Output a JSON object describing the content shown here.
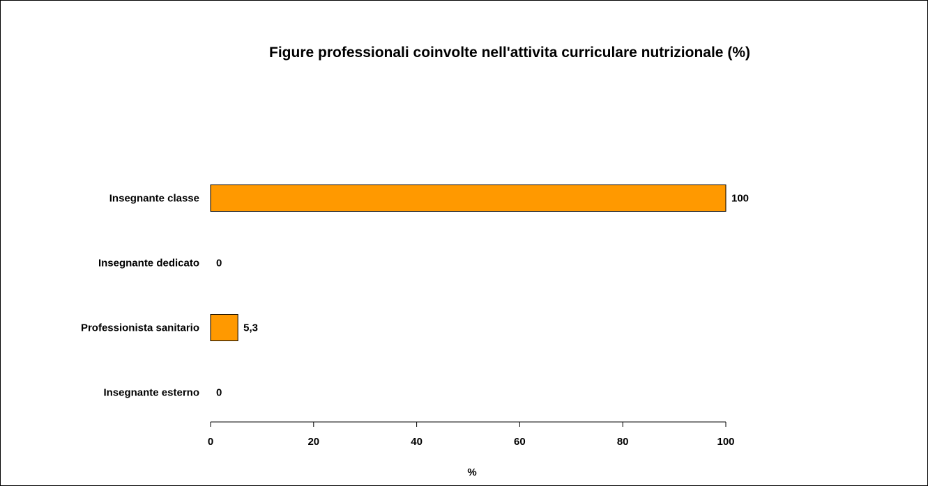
{
  "chart_data": {
    "type": "bar",
    "orientation": "horizontal",
    "title": "Figure professionali coinvolte nell'attivita curriculare nutrizionale (%)",
    "xlabel": "%",
    "ylabel": "",
    "categories": [
      "Insegnante classe",
      "Insegnante dedicato",
      "Professionista sanitario",
      "Insegnante esterno"
    ],
    "values": [
      100,
      0,
      5.3,
      0
    ],
    "data_labels": [
      "100",
      "0",
      "5,3",
      "0"
    ],
    "xlim": [
      0,
      100
    ],
    "xticks": [
      0,
      20,
      40,
      60,
      80,
      100
    ],
    "xtick_labels": [
      "0",
      "20",
      "40",
      "60",
      "80",
      "100"
    ],
    "grid": false,
    "legend": "none",
    "bar_color": "#FF9900",
    "bar_edge_color": "#000000"
  }
}
